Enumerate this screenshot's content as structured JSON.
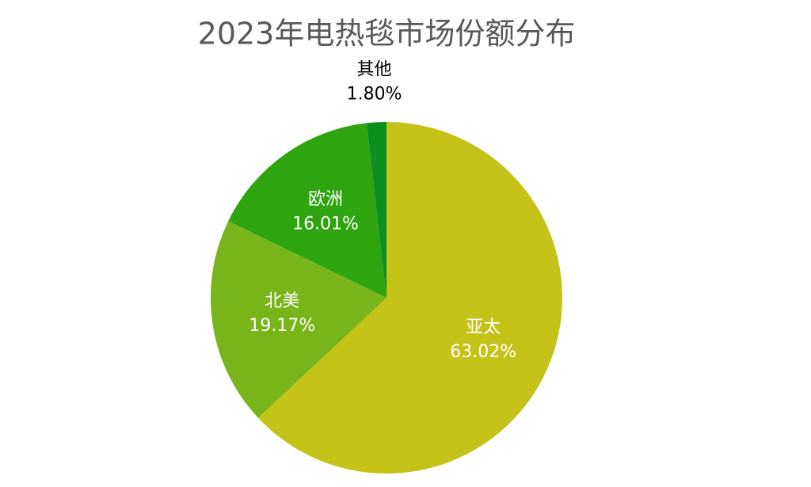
{
  "chart_data": {
    "type": "pie",
    "title": "2023年电热毯市场份额分布",
    "categories": [
      "亚太",
      "北美",
      "欧洲",
      "其他"
    ],
    "values": [
      63.02,
      19.17,
      16.01,
      1.8
    ],
    "value_labels": [
      "63.02%",
      "19.17%",
      "16.01%",
      "1.80%"
    ],
    "colors": [
      "#c5c219",
      "#77b51a",
      "#2ea40f",
      "#0b8f1f"
    ]
  }
}
